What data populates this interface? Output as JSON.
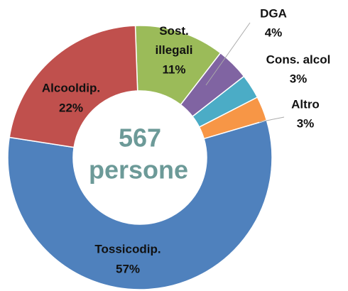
{
  "chart_data": {
    "type": "donut",
    "center_lines": [
      "567",
      "persone"
    ],
    "categories": [
      "Sost. illegali",
      "DGA",
      "Cons. alcol",
      "Altro",
      "Tossicodip.",
      "Alcooldip."
    ],
    "values": [
      11,
      4,
      3,
      3,
      57,
      22
    ],
    "value_labels": [
      "11%",
      "4%",
      "3%",
      "3%",
      "57%",
      "22%"
    ],
    "colors": [
      "#9bbb59",
      "#8064a2",
      "#4bacc6",
      "#f79646",
      "#4f81bd",
      "#c0504d"
    ]
  }
}
